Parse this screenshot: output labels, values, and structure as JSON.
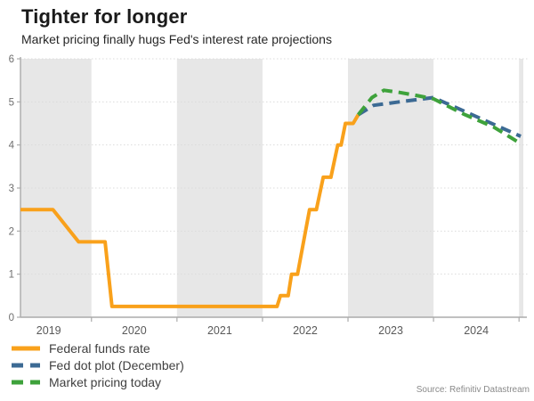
{
  "header": {
    "title": "Tighter for longer",
    "subtitle": "Market pricing finally hugs Fed's interest rate projections"
  },
  "source_note": "Source: Refinitiv Datastream",
  "colors": {
    "federal_funds_orange": "#F9A11B",
    "fed_dot_plot_blue": "#3C6A94",
    "market_pricing_green": "#3EA23B",
    "year_band_gray": "#E7E7E7",
    "axis_line": "#ABABAB",
    "grid_line": "#DBDBDB",
    "tick_label": "#595959",
    "y_label": "#6E6E6E"
  },
  "chart_data": {
    "type": "line",
    "title": "Tighter for longer",
    "subtitle": "Market pricing finally hugs Fed's interest rate projections",
    "xlabel": "",
    "ylabel": "",
    "xlim": [
      2019.17,
      2025.05
    ],
    "ylim": [
      0,
      6
    ],
    "grid": "horizontal-dotted",
    "legend_position": "bottom-left",
    "y_ticks": [
      0,
      1,
      2,
      3,
      4,
      5,
      6
    ],
    "x_boundary_ticks": [
      2020,
      2021,
      2022,
      2023,
      2024,
      2025
    ],
    "x_year_labels": [
      {
        "label": "2019",
        "pos": 2019.5
      },
      {
        "label": "2020",
        "pos": 2020.5
      },
      {
        "label": "2021",
        "pos": 2021.5
      },
      {
        "label": "2022",
        "pos": 2022.5
      },
      {
        "label": "2023",
        "pos": 2023.5
      },
      {
        "label": "2024",
        "pos": 2024.5
      }
    ],
    "shaded_year_bands": [
      [
        2019.17,
        2020
      ],
      [
        2021,
        2022
      ],
      [
        2023,
        2024
      ],
      [
        2025,
        2025.05
      ]
    ],
    "series": [
      {
        "name": "Federal funds rate",
        "color": "#F9A11B",
        "dash": false,
        "points": [
          [
            2019.17,
            2.5
          ],
          [
            2019.55,
            2.5
          ],
          [
            2019.85,
            1.75
          ],
          [
            2020.16,
            1.75
          ],
          [
            2020.24,
            0.25
          ],
          [
            2022.17,
            0.25
          ],
          [
            2022.21,
            0.5
          ],
          [
            2022.3,
            0.5
          ],
          [
            2022.34,
            1.0
          ],
          [
            2022.41,
            1.0
          ],
          [
            2022.55,
            2.5
          ],
          [
            2022.63,
            2.5
          ],
          [
            2022.71,
            3.25
          ],
          [
            2022.8,
            3.25
          ],
          [
            2022.88,
            4.0
          ],
          [
            2022.92,
            4.0
          ],
          [
            2022.97,
            4.5
          ],
          [
            2023.06,
            4.5
          ],
          [
            2023.12,
            4.7
          ]
        ]
      },
      {
        "name": "Fed dot plot (December)",
        "color": "#3C6A94",
        "dash": true,
        "points": [
          [
            2023.12,
            4.7
          ],
          [
            2023.3,
            4.92
          ],
          [
            2023.6,
            5.0
          ],
          [
            2023.8,
            5.05
          ],
          [
            2024.0,
            5.1
          ],
          [
            2025.02,
            4.2
          ]
        ]
      },
      {
        "name": "Market pricing today",
        "color": "#3EA23B",
        "dash": true,
        "points": [
          [
            2023.12,
            4.7
          ],
          [
            2023.28,
            5.1
          ],
          [
            2023.42,
            5.27
          ],
          [
            2023.6,
            5.22
          ],
          [
            2023.8,
            5.15
          ],
          [
            2024.0,
            5.07
          ],
          [
            2024.35,
            4.72
          ],
          [
            2024.7,
            4.42
          ],
          [
            2025.02,
            4.03
          ]
        ]
      }
    ]
  }
}
